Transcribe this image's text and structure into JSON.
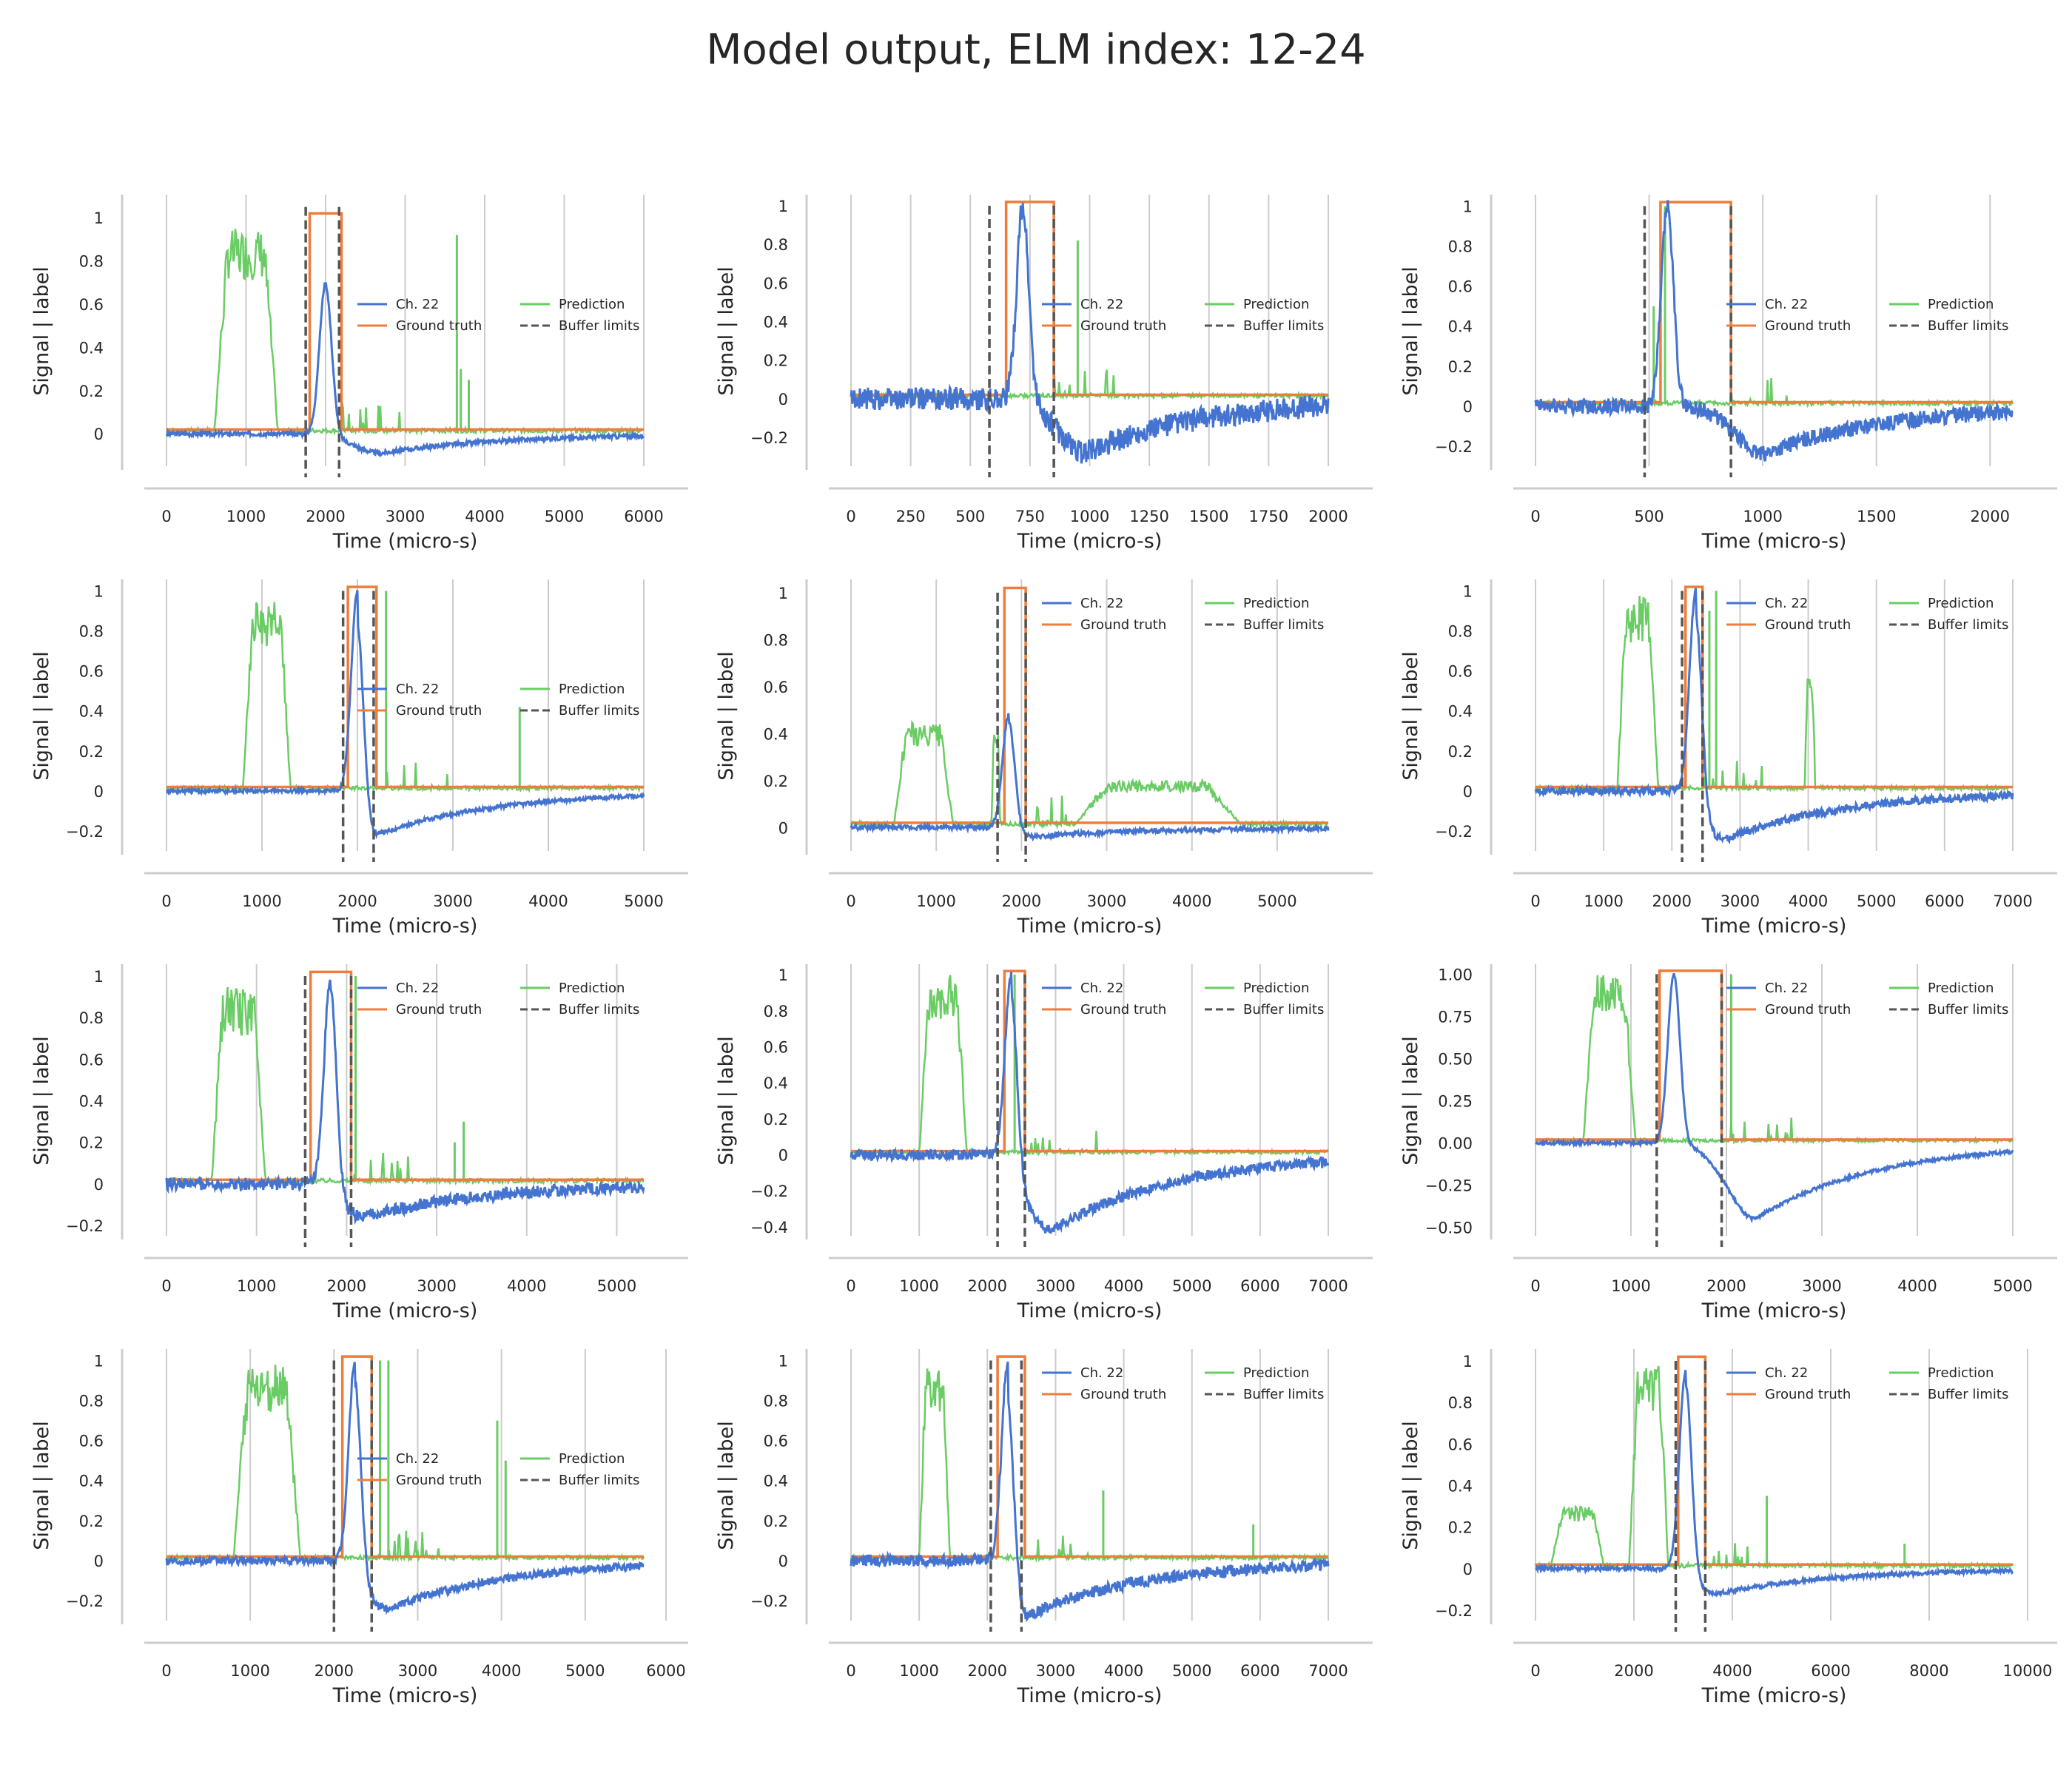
{
  "title": "Model output, ELM index: 12-24",
  "colors": {
    "signal": "#4473d0",
    "truth": "#ee7d3b",
    "prediction": "#6acc64",
    "buffer": "#555555",
    "grid": "#cccccc",
    "spine": "#cccccc"
  },
  "legend": {
    "signal": "Ch. 22",
    "truth": "Ground truth",
    "prediction": "Prediction",
    "buffer": "Buffer limits"
  },
  "chart_data": [
    {
      "type": "line",
      "xlabel": "Time (micro-s)",
      "ylabel": "Signal | label",
      "xlim": [
        0,
        6000
      ],
      "ylim": [
        -0.15,
        1.1
      ],
      "xticks": [
        0,
        1000,
        2000,
        3000,
        4000,
        5000,
        6000
      ],
      "yticks": [
        0.0,
        0.2,
        0.4,
        0.6,
        0.8,
        1.0
      ],
      "legend_pos": "center-right",
      "elm": [
        1800,
        2200
      ],
      "buffer": [
        1750,
        2170
      ],
      "pred_bumps": [
        [
          600,
          1400,
          0.95
        ]
      ],
      "pred_spikes": [
        [
          3650,
          0.92
        ],
        [
          3700,
          0.3
        ],
        [
          3800,
          0.25
        ]
      ],
      "signal_peak": [
        2000,
        0.7
      ],
      "signal_dip": [
        2700,
        -0.09
      ],
      "signal_noise": 0.01
    },
    {
      "type": "line",
      "xlabel": "Time (micro-s)",
      "ylabel": "Signal | label",
      "xlim": [
        0,
        2000
      ],
      "ylim": [
        -0.35,
        1.05
      ],
      "xticks": [
        0,
        250,
        500,
        750,
        1000,
        1250,
        1500,
        1750,
        2000
      ],
      "yticks": [
        -0.2,
        0.0,
        0.2,
        0.4,
        0.6,
        0.8,
        1.0
      ],
      "legend_pos": "center-right",
      "elm": [
        650,
        850
      ],
      "buffer": [
        580,
        850
      ],
      "pred_bumps": [],
      "pred_spikes": [
        [
          950,
          0.82
        ]
      ],
      "signal_peak": [
        720,
        1.0
      ],
      "signal_dip": [
        980,
        -0.28
      ],
      "signal_noise": 0.06
    },
    {
      "type": "line",
      "xlabel": "Time (micro-s)",
      "ylabel": "Signal | label",
      "xlim": [
        0,
        2100
      ],
      "ylim": [
        -0.3,
        1.05
      ],
      "xticks": [
        0,
        500,
        1000,
        1500,
        2000
      ],
      "yticks": [
        -0.2,
        0.0,
        0.2,
        0.4,
        0.6,
        0.8,
        1.0
      ],
      "legend_pos": "center-right",
      "elm": [
        550,
        860
      ],
      "buffer": [
        480,
        860
      ],
      "pred_bumps": [],
      "pred_spikes": [
        [
          520,
          0.5
        ],
        [
          570,
          1.0
        ]
      ],
      "signal_peak": [
        580,
        1.0
      ],
      "signal_dip": [
        1000,
        -0.24
      ],
      "signal_noise": 0.04
    },
    {
      "type": "line",
      "xlabel": "Time (micro-s)",
      "ylabel": "Signal | label",
      "xlim": [
        0,
        5000
      ],
      "ylim": [
        -0.3,
        1.05
      ],
      "xticks": [
        0,
        1000,
        2000,
        3000,
        4000,
        5000
      ],
      "yticks": [
        -0.2,
        0.0,
        0.2,
        0.4,
        0.6,
        0.8,
        1.0
      ],
      "legend_pos": "center-right",
      "elm": [
        1900,
        2200
      ],
      "buffer": [
        1850,
        2170
      ],
      "pred_bumps": [
        [
          800,
          1300,
          0.95
        ]
      ],
      "pred_spikes": [
        [
          2300,
          1.0
        ],
        [
          3700,
          0.42
        ]
      ],
      "signal_peak": [
        2000,
        1.0
      ],
      "signal_dip": [
        2200,
        -0.22
      ],
      "signal_noise": 0.01
    },
    {
      "type": "line",
      "xlabel": "Time (micro-s)",
      "ylabel": "Signal | label",
      "xlim": [
        0,
        5600
      ],
      "ylim": [
        -0.1,
        1.05
      ],
      "xticks": [
        0,
        1000,
        2000,
        3000,
        4000,
        5000
      ],
      "yticks": [
        0.0,
        0.2,
        0.4,
        0.6,
        0.8,
        1.0
      ],
      "legend_pos": "top-right",
      "elm": [
        1800,
        2050
      ],
      "buffer": [
        1720,
        2050
      ],
      "pred_bumps": [
        [
          500,
          1200,
          0.45
        ],
        [
          1650,
          1750,
          0.4
        ],
        [
          2600,
          4600,
          0.2
        ]
      ],
      "pred_spikes": [
        [
          1800,
          0.6
        ]
      ],
      "signal_peak": [
        1850,
        0.48
      ],
      "signal_dip": [
        2100,
        -0.04
      ],
      "signal_noise": 0.01
    },
    {
      "type": "line",
      "xlabel": "Time (micro-s)",
      "ylabel": "Signal | label",
      "xlim": [
        0,
        7000
      ],
      "ylim": [
        -0.3,
        1.05
      ],
      "xticks": [
        0,
        1000,
        2000,
        3000,
        4000,
        5000,
        6000,
        7000
      ],
      "yticks": [
        -0.2,
        0.0,
        0.2,
        0.4,
        0.6,
        0.8,
        1.0
      ],
      "legend_pos": "top-right",
      "elm": [
        2200,
        2450
      ],
      "buffer": [
        2150,
        2450
      ],
      "pred_bumps": [
        [
          1200,
          1800,
          0.98
        ],
        [
          3950,
          4100,
          0.6
        ]
      ],
      "pred_spikes": [
        [
          2650,
          1.0
        ],
        [
          2550,
          0.9
        ]
      ],
      "signal_peak": [
        2350,
        1.0
      ],
      "signal_dip": [
        2800,
        -0.24
      ],
      "signal_noise": 0.02
    },
    {
      "type": "line",
      "xlabel": "Time (micro-s)",
      "ylabel": "Signal | label",
      "xlim": [
        0,
        5300
      ],
      "ylim": [
        -0.25,
        1.05
      ],
      "xticks": [
        0,
        1000,
        2000,
        3000,
        4000,
        5000
      ],
      "yticks": [
        -0.2,
        0.0,
        0.2,
        0.4,
        0.6,
        0.8,
        1.0
      ],
      "legend_pos": "top-right",
      "elm": [
        1600,
        2050
      ],
      "buffer": [
        1540,
        2050
      ],
      "pred_bumps": [
        [
          500,
          1100,
          0.95
        ]
      ],
      "pred_spikes": [
        [
          2100,
          1.0
        ],
        [
          3300,
          0.3
        ],
        [
          3200,
          0.2
        ]
      ],
      "signal_peak": [
        1820,
        1.0
      ],
      "signal_dip": [
        2200,
        -0.16
      ],
      "signal_noise": 0.03
    },
    {
      "type": "line",
      "xlabel": "Time (micro-s)",
      "ylabel": "Signal | label",
      "xlim": [
        0,
        7000
      ],
      "ylim": [
        -0.45,
        1.05
      ],
      "xticks": [
        0,
        1000,
        2000,
        3000,
        4000,
        5000,
        6000,
        7000
      ],
      "yticks": [
        -0.4,
        -0.2,
        0.0,
        0.2,
        0.4,
        0.6,
        0.8,
        1.0
      ],
      "legend_pos": "top-right",
      "elm": [
        2250,
        2550
      ],
      "buffer": [
        2150,
        2550
      ],
      "pred_bumps": [
        [
          1000,
          1700,
          1.0
        ]
      ],
      "pred_spikes": [
        [
          2400,
          1.0
        ]
      ],
      "signal_peak": [
        2350,
        1.0
      ],
      "signal_dip": [
        2950,
        -0.42
      ],
      "signal_noise": 0.03
    },
    {
      "type": "line",
      "xlabel": "Time (micro-s)",
      "ylabel": "Signal | label",
      "xlim": [
        0,
        5000
      ],
      "ylim": [
        -0.55,
        1.05
      ],
      "xticks": [
        0,
        1000,
        2000,
        3000,
        4000,
        5000
      ],
      "yticks": [
        -0.5,
        -0.25,
        0.0,
        0.25,
        0.5,
        0.75,
        1.0
      ],
      "ytick_labels": [
        "−0.50",
        "−0.25",
        "0.00",
        "0.25",
        "0.50",
        "0.75",
        "1.00"
      ],
      "legend_pos": "top-right",
      "elm": [
        1300,
        1950
      ],
      "buffer": [
        1270,
        1950
      ],
      "pred_bumps": [
        [
          500,
          1050,
          1.0
        ]
      ],
      "pred_spikes": [
        [
          2050,
          1.0
        ]
      ],
      "signal_peak": [
        1450,
        1.0
      ],
      "signal_dip": [
        2300,
        -0.45
      ],
      "signal_noise": 0.01
    },
    {
      "type": "line",
      "xlabel": "Time (micro-s)",
      "ylabel": "Signal | label",
      "xlim": [
        0,
        5700
      ],
      "ylim": [
        -0.3,
        1.05
      ],
      "xticks": [
        0,
        1000,
        2000,
        3000,
        4000,
        5000,
        6000
      ],
      "yticks": [
        -0.2,
        0.0,
        0.2,
        0.4,
        0.6,
        0.8,
        1.0
      ],
      "legend_pos": "center-right",
      "elm": [
        2100,
        2450
      ],
      "buffer": [
        2000,
        2450
      ],
      "pred_bumps": [
        [
          800,
          1600,
          0.98
        ]
      ],
      "pred_spikes": [
        [
          2550,
          1.0
        ],
        [
          2650,
          1.0
        ],
        [
          3950,
          0.7
        ],
        [
          4050,
          0.5
        ]
      ],
      "signal_peak": [
        2250,
        1.0
      ],
      "signal_dip": [
        2650,
        -0.24
      ],
      "signal_noise": 0.02
    },
    {
      "type": "line",
      "xlabel": "Time (micro-s)",
      "ylabel": "Signal | label",
      "xlim": [
        0,
        7000
      ],
      "ylim": [
        -0.3,
        1.05
      ],
      "xticks": [
        0,
        1000,
        2000,
        3000,
        4000,
        5000,
        6000,
        7000
      ],
      "yticks": [
        -0.2,
        0.0,
        0.2,
        0.4,
        0.6,
        0.8,
        1.0
      ],
      "legend_pos": "top-right",
      "elm": [
        2150,
        2550
      ],
      "buffer": [
        2050,
        2500
      ],
      "pred_bumps": [
        [
          1000,
          1450,
          0.98
        ]
      ],
      "pred_spikes": [
        [
          3700,
          0.35
        ],
        [
          5900,
          0.18
        ]
      ],
      "signal_peak": [
        2300,
        1.0
      ],
      "signal_dip": [
        2550,
        -0.28
      ],
      "signal_noise": 0.03
    },
    {
      "type": "line",
      "xlabel": "Time (micro-s)",
      "ylabel": "Signal | label",
      "xlim": [
        0,
        9700
      ],
      "ylim": [
        -0.25,
        1.05
      ],
      "xticks": [
        0,
        2000,
        4000,
        6000,
        8000,
        10000
      ],
      "yticks": [
        -0.2,
        0.0,
        0.2,
        0.4,
        0.6,
        0.8,
        1.0
      ],
      "legend_pos": "top-right",
      "elm": [
        2900,
        3450
      ],
      "buffer": [
        2850,
        3450
      ],
      "pred_bumps": [
        [
          300,
          1400,
          0.3
        ],
        [
          1900,
          2700,
          0.98
        ]
      ],
      "pred_spikes": [
        [
          4700,
          0.35
        ],
        [
          7500,
          0.12
        ]
      ],
      "signal_peak": [
        3050,
        0.95
      ],
      "signal_dip": [
        3700,
        -0.12
      ],
      "signal_noise": 0.01
    }
  ]
}
